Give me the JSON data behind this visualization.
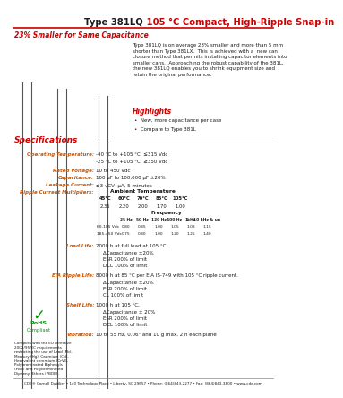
{
  "title_black": "Type 381LQ",
  "title_red": " 105 °C Compact, High-Ripple Snap-in",
  "subtitle": "23% Smaller for Same Capacitance",
  "bg_color": "#ffffff",
  "red_color": "#cc0000",
  "orange_color": "#cc5500",
  "description": "Type 381LQ is on average 23% smaller and more than 5 mm\nshorter than Type 381LX.  This is achieved with a  new can\nclosure method that permits installing capacitor elements into\nsmaller cans.  Approaching the robust capability of the 381L,\nthe new 381LQ enables you to shrink equipment size and\nretain the original performance.",
  "highlights_title": "Highlights",
  "highlights": [
    "New, more capacitance per case",
    "Compare to Type 381L"
  ],
  "spec_title": "Specifications",
  "op_temp_label": "Operating Temperature:",
  "op_temp_val1": "-40 °C to +105 °C, ≤315 Vdc",
  "op_temp_val2": "-25 °C to +105 °C, ≥350 Vdc",
  "rated_v_label": "Rated Voltage:",
  "rated_v_val": "10 to 450 Vdc",
  "cap_label": "Capacitance:",
  "cap_val": "100 μF to 100,000 μF ±20%",
  "leak_label": "Leakage Current:",
  "leak_val": "≤3 √CV  μA, 5 minutes",
  "ripple_label": "Ripple Current Multipliers:",
  "ambient_label": "Ambient Temperature",
  "amb_temps": [
    "45°C",
    "60°C",
    "70°C",
    "85°C",
    "105°C"
  ],
  "amb_vals": [
    "2.35",
    "2.20",
    "2.00",
    "1.70",
    "1.00"
  ],
  "freq_label": "Frequency",
  "freq_headers": [
    "25 Hz",
    "50 Hz",
    "120 Hz",
    "400 Hz",
    "1kHz",
    "10 kHz & up"
  ],
  "freq_row1_label": "60-105 Vdc",
  "freq_row1": [
    "0.80",
    "0.85",
    "1.00",
    "1.05",
    "1.08",
    "1.15"
  ],
  "freq_row2_label": "185-450 Vdc",
  "freq_row2": [
    "0.75",
    "0.80",
    "1.00",
    "1.20",
    "1.25",
    "1.40"
  ],
  "load_label": "Load Life:",
  "load_val_line1": "2000 h at full load at 105 °C",
  "load_val_lines": [
    "ΔCapacitance ±20%",
    "ESR 200% of limit",
    "DCL 100% of limit"
  ],
  "eia_label": "EIA Ripple Life:",
  "eia_val_line1": "8000 h at 85 °C per EIA IS-749 with 105 °C ripple current.",
  "eia_val_lines": [
    "ΔCapacitance ±20%",
    "ESR 200% of limit",
    "CL 100% of limit"
  ],
  "shelf_label": "Shelf Life:",
  "shelf_val_line1": "1000 h at 105 °C,",
  "shelf_val_lines": [
    "ΔCapacitance ± 20%",
    "ESR 200% of limit",
    "DCL 100% of limit"
  ],
  "vib_label": "Vibration:",
  "vib_val": "10 to 55 Hz, 0.06\" and 10 g max, 2 h each plane",
  "comply_text": "Complies with the EU Directive\n2002/95/EC requirements\nrestricting the use of Lead (Pb),\nMercury (Hg), Cadmium (Cd),\nHexavalent chromium (CrVI),\nPolybrominated Biphenyls\n(PBB) and Polybrominated\nDiphenyl Ethers (PBDE).",
  "footer": "CDE® Cornell Dubilier • 140 Technology Place • Liberty, SC 29657 • Phone: (864)843-2277 • Fax: (864)843-3800 • www.cde.com"
}
